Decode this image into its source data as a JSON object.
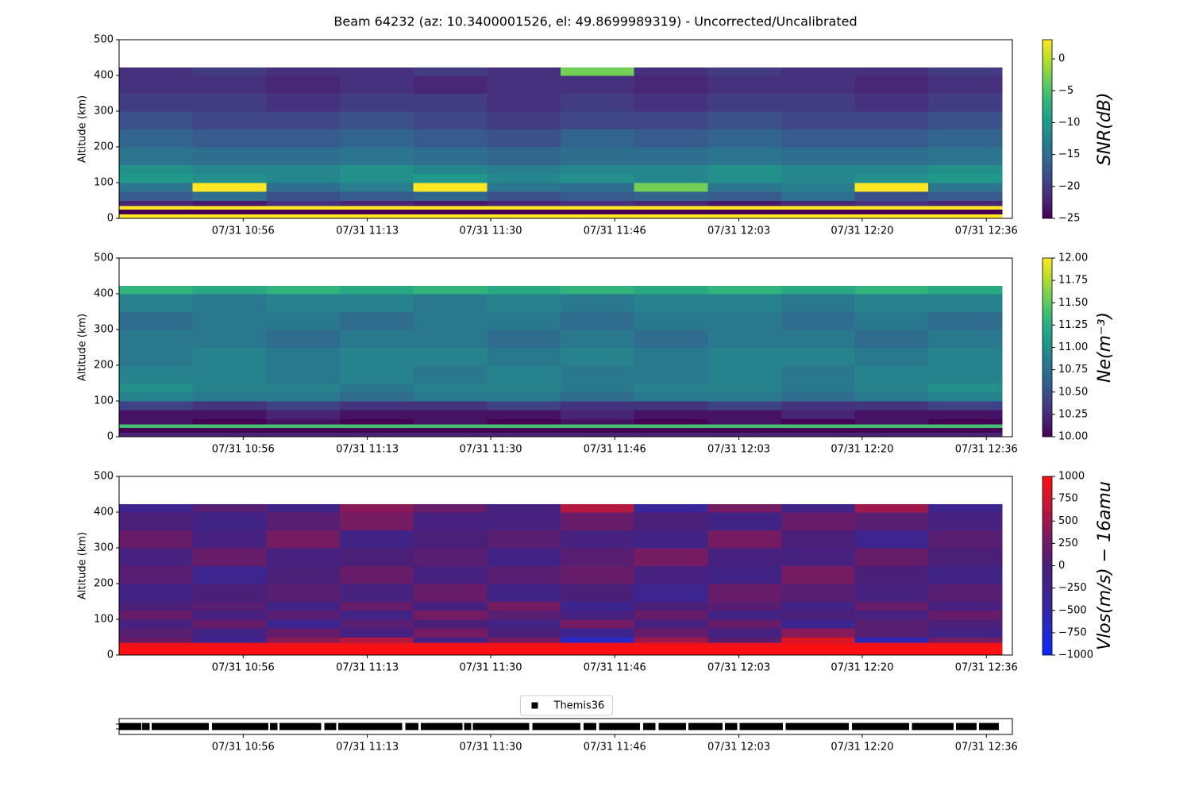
{
  "title": "Beam 64232 (az: 10.3400001526, el: 49.8699989319) - Uncorrected/Uncalibrated",
  "chart_data": [
    {
      "type": "heatmap",
      "ylabel": "Altitude (km)",
      "colorbar_label": "SNR(dB)",
      "colormap": "viridis",
      "xlim": [
        639.3,
        759.5
      ],
      "xticks": [
        {
          "value": 656,
          "label": "07/31 10:56"
        },
        {
          "value": 672.7,
          "label": "07/31 11:13"
        },
        {
          "value": 689.3,
          "label": "07/31 11:30"
        },
        {
          "value": 706,
          "label": "07/31 11:46"
        },
        {
          "value": 722.7,
          "label": "07/31 12:03"
        },
        {
          "value": 739.3,
          "label": "07/31 12:20"
        },
        {
          "value": 756,
          "label": "07/31 12:36"
        }
      ],
      "ylim": [
        0,
        500
      ],
      "yticks": [
        0,
        100,
        200,
        300,
        400,
        500
      ],
      "clim": [
        -25,
        3
      ],
      "cticks": [
        {
          "value": -25,
          "label": "−25"
        },
        {
          "value": -20,
          "label": "−20"
        },
        {
          "value": -15,
          "label": "−15"
        },
        {
          "value": -10,
          "label": "−10"
        },
        {
          "value": -5,
          "label": "−5"
        },
        0
      ],
      "x_edges": [
        639.3,
        649.2,
        659.1,
        669.0,
        678.9,
        688.8,
        698.7,
        708.6,
        718.5,
        728.4,
        738.3,
        748.2,
        758.1
      ],
      "y_edges": [
        0,
        12,
        25,
        35,
        50,
        75,
        100,
        125,
        150,
        200,
        250,
        300,
        350,
        400,
        422
      ],
      "values": [
        [
          3,
          3,
          3,
          3,
          3,
          3,
          3,
          3,
          3,
          3,
          3,
          3
        ],
        [
          -25,
          -25,
          -25,
          -25,
          -25,
          -25,
          -25,
          -25,
          -25,
          -25,
          -25,
          -25
        ],
        [
          3,
          3,
          3,
          3,
          3,
          3,
          3,
          3,
          3,
          3,
          3,
          3
        ],
        [
          -22,
          -23,
          -21,
          -22,
          -23,
          -22,
          -21,
          -22,
          -23,
          -22,
          -21,
          -22
        ],
        [
          -17,
          -15,
          -18,
          -17,
          -16,
          -18,
          -17,
          -16,
          -17,
          -15,
          -18,
          -17
        ],
        [
          -14,
          3,
          -15,
          -13,
          3,
          -14,
          -15,
          -3,
          -14,
          -13,
          3,
          -14
        ],
        [
          -10,
          -11,
          -12,
          -11,
          -10,
          -12,
          -11,
          -12,
          -11,
          -12,
          -11,
          -10
        ],
        [
          -11,
          -12,
          -12,
          -11,
          -12,
          -13,
          -12,
          -12,
          -11,
          -12,
          -12,
          -11
        ],
        [
          -14,
          -15,
          -15,
          -14,
          -15,
          -16,
          -15,
          -15,
          -14,
          -15,
          -15,
          -14
        ],
        [
          -16,
          -17,
          -17,
          -16,
          -17,
          -18,
          -16,
          -17,
          -16,
          -17,
          -17,
          -16
        ],
        [
          -18,
          -19,
          -19,
          -18,
          -19,
          -20,
          -19,
          -19,
          -18,
          -19,
          -19,
          -18
        ],
        [
          -20,
          -20,
          -21,
          -20,
          -20,
          -21,
          -20,
          -21,
          -20,
          -20,
          -21,
          -20
        ],
        [
          -21,
          -21,
          -22,
          -21,
          -22,
          -21,
          -21,
          -22,
          -21,
          -21,
          -22,
          -21
        ],
        [
          -21,
          -20,
          -21,
          -21,
          -20,
          -21,
          -3,
          -21,
          -20,
          -21,
          -21,
          -20
        ]
      ]
    },
    {
      "type": "heatmap",
      "ylabel": "Altitude (km)",
      "colorbar_label": "Ne(m⁻³)",
      "colormap": "viridis",
      "xlim": [
        639.3,
        759.5
      ],
      "xticks": [
        {
          "value": 656,
          "label": "07/31 10:56"
        },
        {
          "value": 672.7,
          "label": "07/31 11:13"
        },
        {
          "value": 689.3,
          "label": "07/31 11:30"
        },
        {
          "value": 706,
          "label": "07/31 11:46"
        },
        {
          "value": 722.7,
          "label": "07/31 12:03"
        },
        {
          "value": 739.3,
          "label": "07/31 12:20"
        },
        {
          "value": 756,
          "label": "07/31 12:36"
        }
      ],
      "ylim": [
        0,
        500
      ],
      "yticks": [
        0,
        100,
        200,
        300,
        400,
        500
      ],
      "clim": [
        10,
        12
      ],
      "cticks": [
        {
          "value": 10,
          "label": "10.00"
        },
        10.25,
        {
          "value": 10.5,
          "label": "10.50"
        },
        10.75,
        {
          "value": 11,
          "label": "11.00"
        },
        11.25,
        {
          "value": 11.5,
          "label": "11.50"
        },
        11.75,
        {
          "value": 12,
          "label": "12.00"
        }
      ],
      "x_edges": [
        639.3,
        649.2,
        659.1,
        669.0,
        678.9,
        688.8,
        698.7,
        708.6,
        718.5,
        728.4,
        738.3,
        748.2,
        758.1
      ],
      "y_edges": [
        0,
        12,
        25,
        35,
        50,
        75,
        100,
        125,
        150,
        200,
        250,
        300,
        350,
        400,
        422
      ],
      "values": [
        [
          10.2,
          10.2,
          10.2,
          10.2,
          10.2,
          10.2,
          10.2,
          10.2,
          10.2,
          10.2,
          10.2,
          10.2
        ],
        [
          10.0,
          10.0,
          10.0,
          10.0,
          10.0,
          10.0,
          10.0,
          10.0,
          10.0,
          10.0,
          10.0,
          10.0
        ],
        [
          11.4,
          11.4,
          11.4,
          11.4,
          11.4,
          11.4,
          11.4,
          11.4,
          11.4,
          11.4,
          11.4,
          11.4
        ],
        [
          10.1,
          10.0,
          10.1,
          10.0,
          10.1,
          10.0,
          10.1,
          10.0,
          10.1,
          10.0,
          10.1,
          10.0
        ],
        [
          10.1,
          10.1,
          10.2,
          10.1,
          10.1,
          10.1,
          10.2,
          10.1,
          10.1,
          10.2,
          10.1,
          10.1
        ],
        [
          10.4,
          10.3,
          10.4,
          10.3,
          10.3,
          10.4,
          10.3,
          10.3,
          10.4,
          10.3,
          10.3,
          10.4
        ],
        [
          10.9,
          10.8,
          10.8,
          10.7,
          10.8,
          10.8,
          10.7,
          10.8,
          10.8,
          10.7,
          10.8,
          10.9
        ],
        [
          11.0,
          10.9,
          10.9,
          10.8,
          10.9,
          10.9,
          10.8,
          10.9,
          10.9,
          10.8,
          10.9,
          11.0
        ],
        [
          10.9,
          10.9,
          10.8,
          10.9,
          10.8,
          10.9,
          10.8,
          10.8,
          10.9,
          10.8,
          10.9,
          10.9
        ],
        [
          10.8,
          10.9,
          10.8,
          10.9,
          10.9,
          10.8,
          10.9,
          10.8,
          10.9,
          10.9,
          10.8,
          10.9
        ],
        [
          10.8,
          10.8,
          10.7,
          10.8,
          10.8,
          10.7,
          10.8,
          10.7,
          10.8,
          10.8,
          10.7,
          10.8
        ],
        [
          10.7,
          10.8,
          10.8,
          10.7,
          10.8,
          10.8,
          10.7,
          10.8,
          10.8,
          10.7,
          10.8,
          10.7
        ],
        [
          10.9,
          10.8,
          10.9,
          10.9,
          10.8,
          10.9,
          10.8,
          10.9,
          10.9,
          10.8,
          10.9,
          10.9
        ],
        [
          11.3,
          11.2,
          11.3,
          11.2,
          11.3,
          11.2,
          11.3,
          11.2,
          11.3,
          11.2,
          11.3,
          11.2
        ]
      ]
    },
    {
      "type": "heatmap",
      "ylabel": "Altitude (km)",
      "colorbar_label": "Vlos(m/s) − 16amu",
      "colormap": "blue-red",
      "xlim": [
        639.3,
        759.5
      ],
      "xticks": [
        {
          "value": 656,
          "label": "07/31 10:56"
        },
        {
          "value": 672.7,
          "label": "07/31 11:13"
        },
        {
          "value": 689.3,
          "label": "07/31 11:30"
        },
        {
          "value": 706,
          "label": "07/31 11:46"
        },
        {
          "value": 722.7,
          "label": "07/31 12:03"
        },
        {
          "value": 739.3,
          "label": "07/31 12:20"
        },
        {
          "value": 756,
          "label": "07/31 12:36"
        }
      ],
      "ylim": [
        0,
        500
      ],
      "yticks": [
        0,
        100,
        200,
        300,
        400,
        500
      ],
      "clim": [
        -1000,
        1000
      ],
      "cticks": [
        {
          "value": -1000,
          "label": "−1000"
        },
        {
          "value": -750,
          "label": "−750"
        },
        {
          "value": -500,
          "label": "−500"
        },
        {
          "value": -250,
          "label": "−250"
        },
        0,
        250,
        500,
        750,
        1000
      ],
      "x_edges": [
        639.3,
        649.2,
        659.1,
        669.0,
        678.9,
        688.8,
        698.7,
        708.6,
        718.5,
        728.4,
        738.3,
        748.2,
        758.1
      ],
      "y_edges": [
        0,
        12,
        25,
        35,
        50,
        75,
        100,
        125,
        150,
        200,
        250,
        300,
        350,
        400,
        422
      ],
      "values": [
        [
          1000,
          1000,
          1000,
          1000,
          1000,
          1000,
          1000,
          1000,
          1000,
          1000,
          1000,
          1000
        ],
        [
          1000,
          1000,
          1000,
          1000,
          1000,
          1000,
          1000,
          1000,
          1000,
          1000,
          1000,
          1000
        ],
        [
          900,
          900,
          900,
          900,
          900,
          900,
          900,
          900,
          900,
          900,
          900,
          900
        ],
        [
          200,
          -300,
          400,
          600,
          -200,
          300,
          -700,
          500,
          100,
          800,
          -600,
          300
        ],
        [
          100,
          -200,
          200,
          -100,
          300,
          0,
          -300,
          200,
          -100,
          400,
          100,
          -200
        ],
        [
          -100,
          200,
          -300,
          100,
          0,
          -200,
          300,
          -100,
          200,
          -300,
          100,
          0
        ],
        [
          200,
          -100,
          100,
          -200,
          300,
          100,
          -100,
          200,
          -200,
          0,
          -100,
          200
        ],
        [
          0,
          100,
          -200,
          200,
          -100,
          300,
          -300,
          0,
          100,
          -200,
          200,
          -100
        ],
        [
          -200,
          0,
          100,
          -100,
          200,
          -200,
          0,
          -300,
          200,
          100,
          -100,
          100
        ],
        [
          100,
          -300,
          0,
          200,
          -100,
          100,
          200,
          -100,
          -200,
          300,
          0,
          -200
        ],
        [
          -100,
          200,
          -100,
          0,
          100,
          -200,
          100,
          300,
          -100,
          -100,
          200,
          0
        ],
        [
          200,
          -100,
          300,
          -200,
          0,
          100,
          -100,
          -200,
          300,
          0,
          -300,
          100
        ],
        [
          0,
          -200,
          100,
          300,
          -100,
          -100,
          200,
          0,
          -200,
          200,
          100,
          -100
        ],
        [
          -300,
          100,
          -200,
          400,
          200,
          -100,
          600,
          -400,
          300,
          -200,
          500,
          -300
        ]
      ]
    },
    {
      "type": "scatter",
      "legend": "upper center",
      "xlim": [
        639.3,
        759.5
      ],
      "xticks": [
        {
          "value": 656,
          "label": "07/31 10:56"
        },
        {
          "value": 672.7,
          "label": "07/31 11:13"
        },
        {
          "value": 689.3,
          "label": "07/31 11:30"
        },
        {
          "value": 706,
          "label": "07/31 11:46"
        },
        {
          "value": 722.7,
          "label": "07/31 12:03"
        },
        {
          "value": 739.3,
          "label": "07/31 12:20"
        },
        {
          "value": 756,
          "label": "07/31 12:36"
        }
      ],
      "series": [
        {
          "name": "Themis36",
          "color": "#000000",
          "x": [
            639.8,
            640.8,
            641.8,
            642.9,
            644.2,
            645.2,
            646.2,
            647.2,
            648.2,
            649.2,
            650.2,
            650.9,
            652.3,
            653.3,
            654.3,
            655.3,
            656.3,
            657.3,
            658.3,
            658.9,
            660.1,
            661.4,
            662.4,
            663.4,
            664.4,
            665.4,
            666.0,
            667.4,
            668.0,
            669.3,
            670.3,
            671.3,
            672.3,
            673.3,
            674.3,
            675.3,
            676.3,
            676.9,
            678.3,
            679.1,
            680.4,
            681.4,
            682.4,
            683.4,
            684.4,
            685.0,
            686.2,
            687.4,
            688.4,
            689.4,
            690.4,
            691.4,
            692.4,
            693.4,
            694.0,
            695.4,
            696.4,
            697.4,
            698.4,
            699.4,
            700.4,
            700.9,
            702.3,
            703.0,
            704.4,
            705.4,
            706.4,
            707.4,
            708.4,
            708.9,
            710.3,
            711.0,
            712.4,
            713.4,
            714.4,
            715.1,
            716.4,
            717.4,
            718.4,
            719.4,
            720.0,
            721.3,
            722.0,
            723.3,
            724.3,
            725.3,
            726.3,
            727.3,
            728.1,
            729.5,
            730.5,
            731.5,
            732.5,
            733.5,
            734.5,
            735.5,
            736.5,
            737.0,
            738.4,
            739.4,
            740.4,
            741.4,
            742.4,
            743.4,
            744.4,
            745.1,
            746.5,
            747.5,
            748.5,
            749.5,
            750.5,
            751.1,
            752.4,
            753.4,
            754.2,
            755.5,
            756.5,
            757.2
          ]
        }
      ]
    }
  ]
}
